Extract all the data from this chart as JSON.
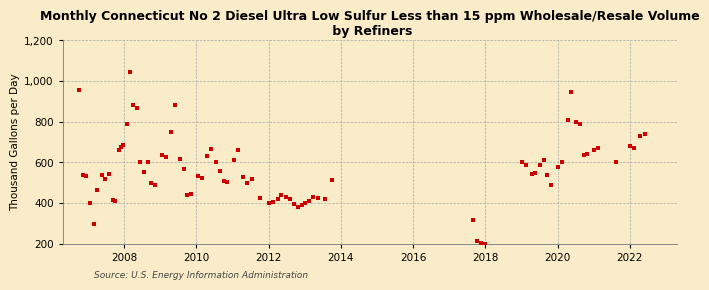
{
  "title": "Monthly Connecticut No 2 Diesel Ultra Low Sulfur Less than 15 ppm Wholesale/Resale Volume\n by Refiners",
  "ylabel": "Thousand Gallons per Day",
  "source": "Source: U.S. Energy Information Administration",
  "background_color": "#faecc8",
  "plot_bg": "#faecc8",
  "dot_color": "#cc0000",
  "ylim": [
    200,
    1200
  ],
  "yticks": [
    200,
    400,
    600,
    800,
    1000,
    1200
  ],
  "xlim": [
    2006.3,
    2023.3
  ],
  "xticks": [
    2008,
    2010,
    2012,
    2014,
    2016,
    2018,
    2020,
    2022
  ],
  "data": [
    [
      2006.75,
      955
    ],
    [
      2006.85,
      540
    ],
    [
      2006.95,
      535
    ],
    [
      2007.05,
      400
    ],
    [
      2007.15,
      295
    ],
    [
      2007.25,
      465
    ],
    [
      2007.38,
      540
    ],
    [
      2007.48,
      520
    ],
    [
      2007.58,
      545
    ],
    [
      2007.68,
      415
    ],
    [
      2007.75,
      410
    ],
    [
      2007.85,
      660
    ],
    [
      2007.92,
      675
    ],
    [
      2007.98,
      685
    ],
    [
      2008.07,
      790
    ],
    [
      2008.15,
      1045
    ],
    [
      2008.25,
      885
    ],
    [
      2008.35,
      870
    ],
    [
      2008.45,
      600
    ],
    [
      2008.55,
      555
    ],
    [
      2008.65,
      600
    ],
    [
      2008.75,
      500
    ],
    [
      2008.85,
      490
    ],
    [
      2009.05,
      635
    ],
    [
      2009.15,
      625
    ],
    [
      2009.3,
      750
    ],
    [
      2009.4,
      885
    ],
    [
      2009.55,
      615
    ],
    [
      2009.65,
      570
    ],
    [
      2009.75,
      440
    ],
    [
      2009.85,
      445
    ],
    [
      2010.05,
      535
    ],
    [
      2010.15,
      525
    ],
    [
      2010.3,
      630
    ],
    [
      2010.4,
      665
    ],
    [
      2010.55,
      600
    ],
    [
      2010.65,
      560
    ],
    [
      2010.75,
      510
    ],
    [
      2010.85,
      505
    ],
    [
      2011.05,
      610
    ],
    [
      2011.15,
      660
    ],
    [
      2011.3,
      530
    ],
    [
      2011.4,
      500
    ],
    [
      2011.55,
      520
    ],
    [
      2011.75,
      425
    ],
    [
      2012.0,
      400
    ],
    [
      2012.12,
      405
    ],
    [
      2012.25,
      420
    ],
    [
      2012.35,
      440
    ],
    [
      2012.48,
      430
    ],
    [
      2012.58,
      420
    ],
    [
      2012.7,
      395
    ],
    [
      2012.8,
      380
    ],
    [
      2012.92,
      390
    ],
    [
      2013.02,
      400
    ],
    [
      2013.12,
      410
    ],
    [
      2013.22,
      430
    ],
    [
      2013.38,
      425
    ],
    [
      2013.55,
      420
    ],
    [
      2013.75,
      515
    ],
    [
      2017.65,
      315
    ],
    [
      2017.78,
      215
    ],
    [
      2017.88,
      205
    ],
    [
      2017.98,
      200
    ],
    [
      2019.02,
      600
    ],
    [
      2019.12,
      590
    ],
    [
      2019.28,
      545
    ],
    [
      2019.38,
      550
    ],
    [
      2019.52,
      590
    ],
    [
      2019.62,
      610
    ],
    [
      2019.72,
      540
    ],
    [
      2019.82,
      490
    ],
    [
      2020.02,
      580
    ],
    [
      2020.12,
      600
    ],
    [
      2020.28,
      810
    ],
    [
      2020.38,
      945
    ],
    [
      2020.52,
      800
    ],
    [
      2020.62,
      790
    ],
    [
      2020.72,
      635
    ],
    [
      2020.82,
      640
    ],
    [
      2021.02,
      660
    ],
    [
      2021.12,
      670
    ],
    [
      2021.62,
      600
    ],
    [
      2022.02,
      680
    ],
    [
      2022.12,
      670
    ],
    [
      2022.28,
      730
    ],
    [
      2022.42,
      740
    ]
  ]
}
